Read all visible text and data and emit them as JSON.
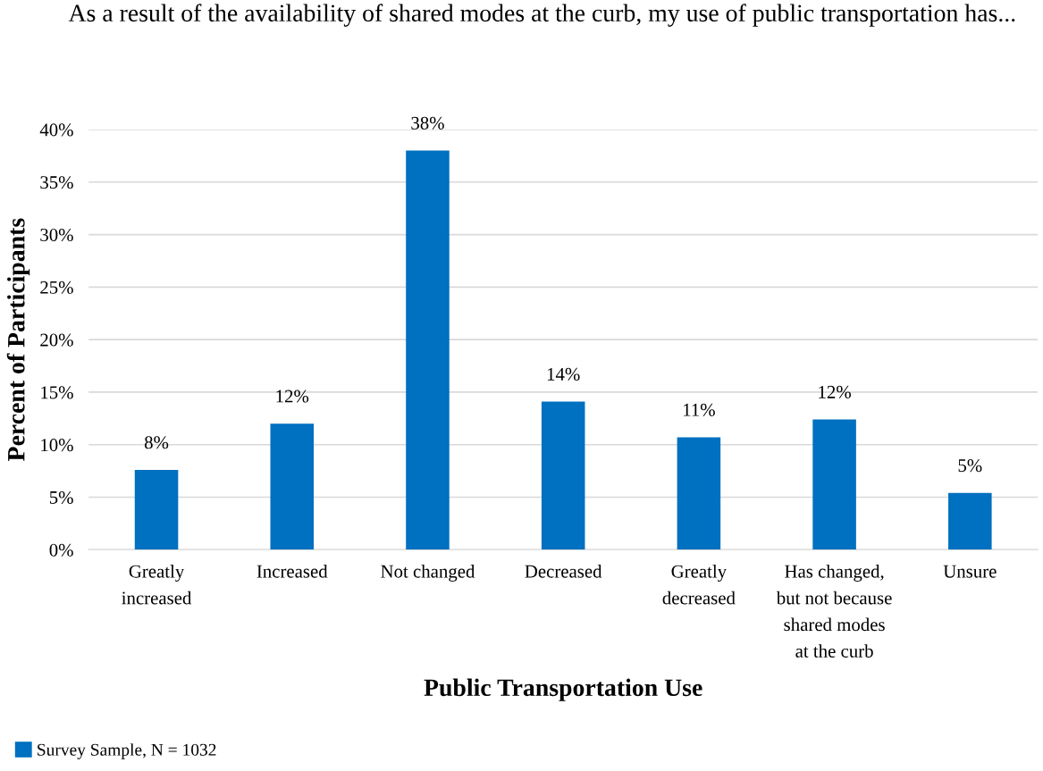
{
  "chart_data": {
    "type": "bar",
    "title": "As a result of the availability of shared modes at the curb, my use of public transportation has...",
    "xlabel": "Public Transportation Use",
    "ylabel": "Percent of Participants",
    "categories": [
      "Greatly\nincreased",
      "Increased",
      "Not changed",
      "Decreased",
      "Greatly\ndecreased",
      "Has changed,\nbut not because\nshared modes\nat the curb",
      "Unsure"
    ],
    "series": [
      {
        "name": "Survey Sample, N = 1032",
        "color": "#0070c0",
        "values": [
          7.6,
          12,
          38,
          14.1,
          10.7,
          12.4,
          5.4
        ],
        "value_labels": [
          "8%",
          "12%",
          "38%",
          "14%",
          "11%",
          "12%",
          "5%"
        ]
      }
    ],
    "ylim": [
      0,
      40
    ],
    "yticks": [
      {
        "value": 0,
        "label": "0%"
      },
      {
        "value": 5,
        "label": "5%"
      },
      {
        "value": 10,
        "label": "10%"
      },
      {
        "value": 15,
        "label": "15%"
      },
      {
        "value": 20,
        "label": "20%"
      },
      {
        "value": 25,
        "label": "25%"
      },
      {
        "value": 30,
        "label": "30%"
      },
      {
        "value": 35,
        "label": "35%"
      },
      {
        "value": 40,
        "label": "40%"
      }
    ],
    "grid": "y",
    "legend": "bottom left"
  }
}
